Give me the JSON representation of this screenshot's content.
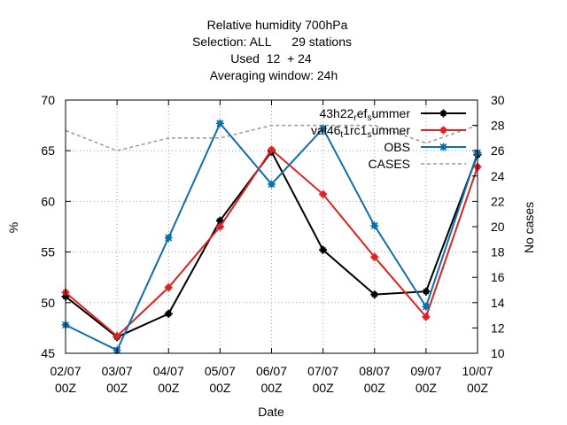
{
  "chart_data": {
    "type": "line",
    "title_lines": [
      "Relative humidity 700hPa",
      "Selection: ALL      29 stations",
      "Used  12  + 24",
      "Averaging window: 24h"
    ],
    "xlabel": "Date",
    "ylabel": "%",
    "y2label": "No cases",
    "categories": [
      [
        "02/07",
        "00Z"
      ],
      [
        "03/07",
        "00Z"
      ],
      [
        "04/07",
        "00Z"
      ],
      [
        "05/07",
        "00Z"
      ],
      [
        "06/07",
        "00Z"
      ],
      [
        "07/07",
        "00Z"
      ],
      [
        "08/07",
        "00Z"
      ],
      [
        "09/07",
        "00Z"
      ],
      [
        "10/07",
        "00Z"
      ]
    ],
    "ylim": [
      45,
      70
    ],
    "yticks": [
      45,
      50,
      55,
      60,
      65,
      70
    ],
    "y2lim": [
      10,
      30
    ],
    "y2ticks": [
      10,
      12,
      14,
      16,
      18,
      20,
      22,
      24,
      26,
      28,
      30
    ],
    "grid": true,
    "legend_position": "top-right",
    "series": [
      {
        "name_parts": [
          {
            "t": "43h22",
            "s": "base"
          },
          {
            "t": "r",
            "s": "sub"
          },
          {
            "t": "ef",
            "s": "base"
          },
          {
            "t": "s",
            "s": "sub"
          },
          {
            "t": "ummer",
            "s": "base"
          }
        ],
        "color": "#000000",
        "marker": "plus",
        "axis": "y",
        "values": [
          50.6,
          46.6,
          48.9,
          58.1,
          64.9,
          55.2,
          50.8,
          51.1,
          64.6
        ]
      },
      {
        "name_parts": [
          {
            "t": "val46",
            "s": "base"
          },
          {
            "t": "t",
            "s": "sub"
          },
          {
            "t": "1rc1",
            "s": "base"
          },
          {
            "t": "s",
            "s": "sub"
          },
          {
            "t": "ummer",
            "s": "base"
          }
        ],
        "color": "#dd2222",
        "marker": "plus",
        "axis": "y",
        "values": [
          51.0,
          46.7,
          51.5,
          57.5,
          65.1,
          60.7,
          54.5,
          48.6,
          63.4
        ]
      },
      {
        "name_parts": [
          {
            "t": "OBS",
            "s": "base"
          }
        ],
        "color": "#0f6fa8",
        "marker": "star",
        "axis": "y",
        "values": [
          47.8,
          45.3,
          56.4,
          67.7,
          61.7,
          67.2,
          57.6,
          49.6,
          64.8
        ]
      },
      {
        "name_parts": [
          {
            "t": "CASES",
            "s": "base"
          }
        ],
        "color": "#999999",
        "marker": "none",
        "dash": true,
        "axis": "y2",
        "values": [
          27.6,
          26.0,
          27.0,
          27.0,
          28.0,
          28.0,
          28.0,
          26.6,
          28.0
        ]
      }
    ]
  }
}
